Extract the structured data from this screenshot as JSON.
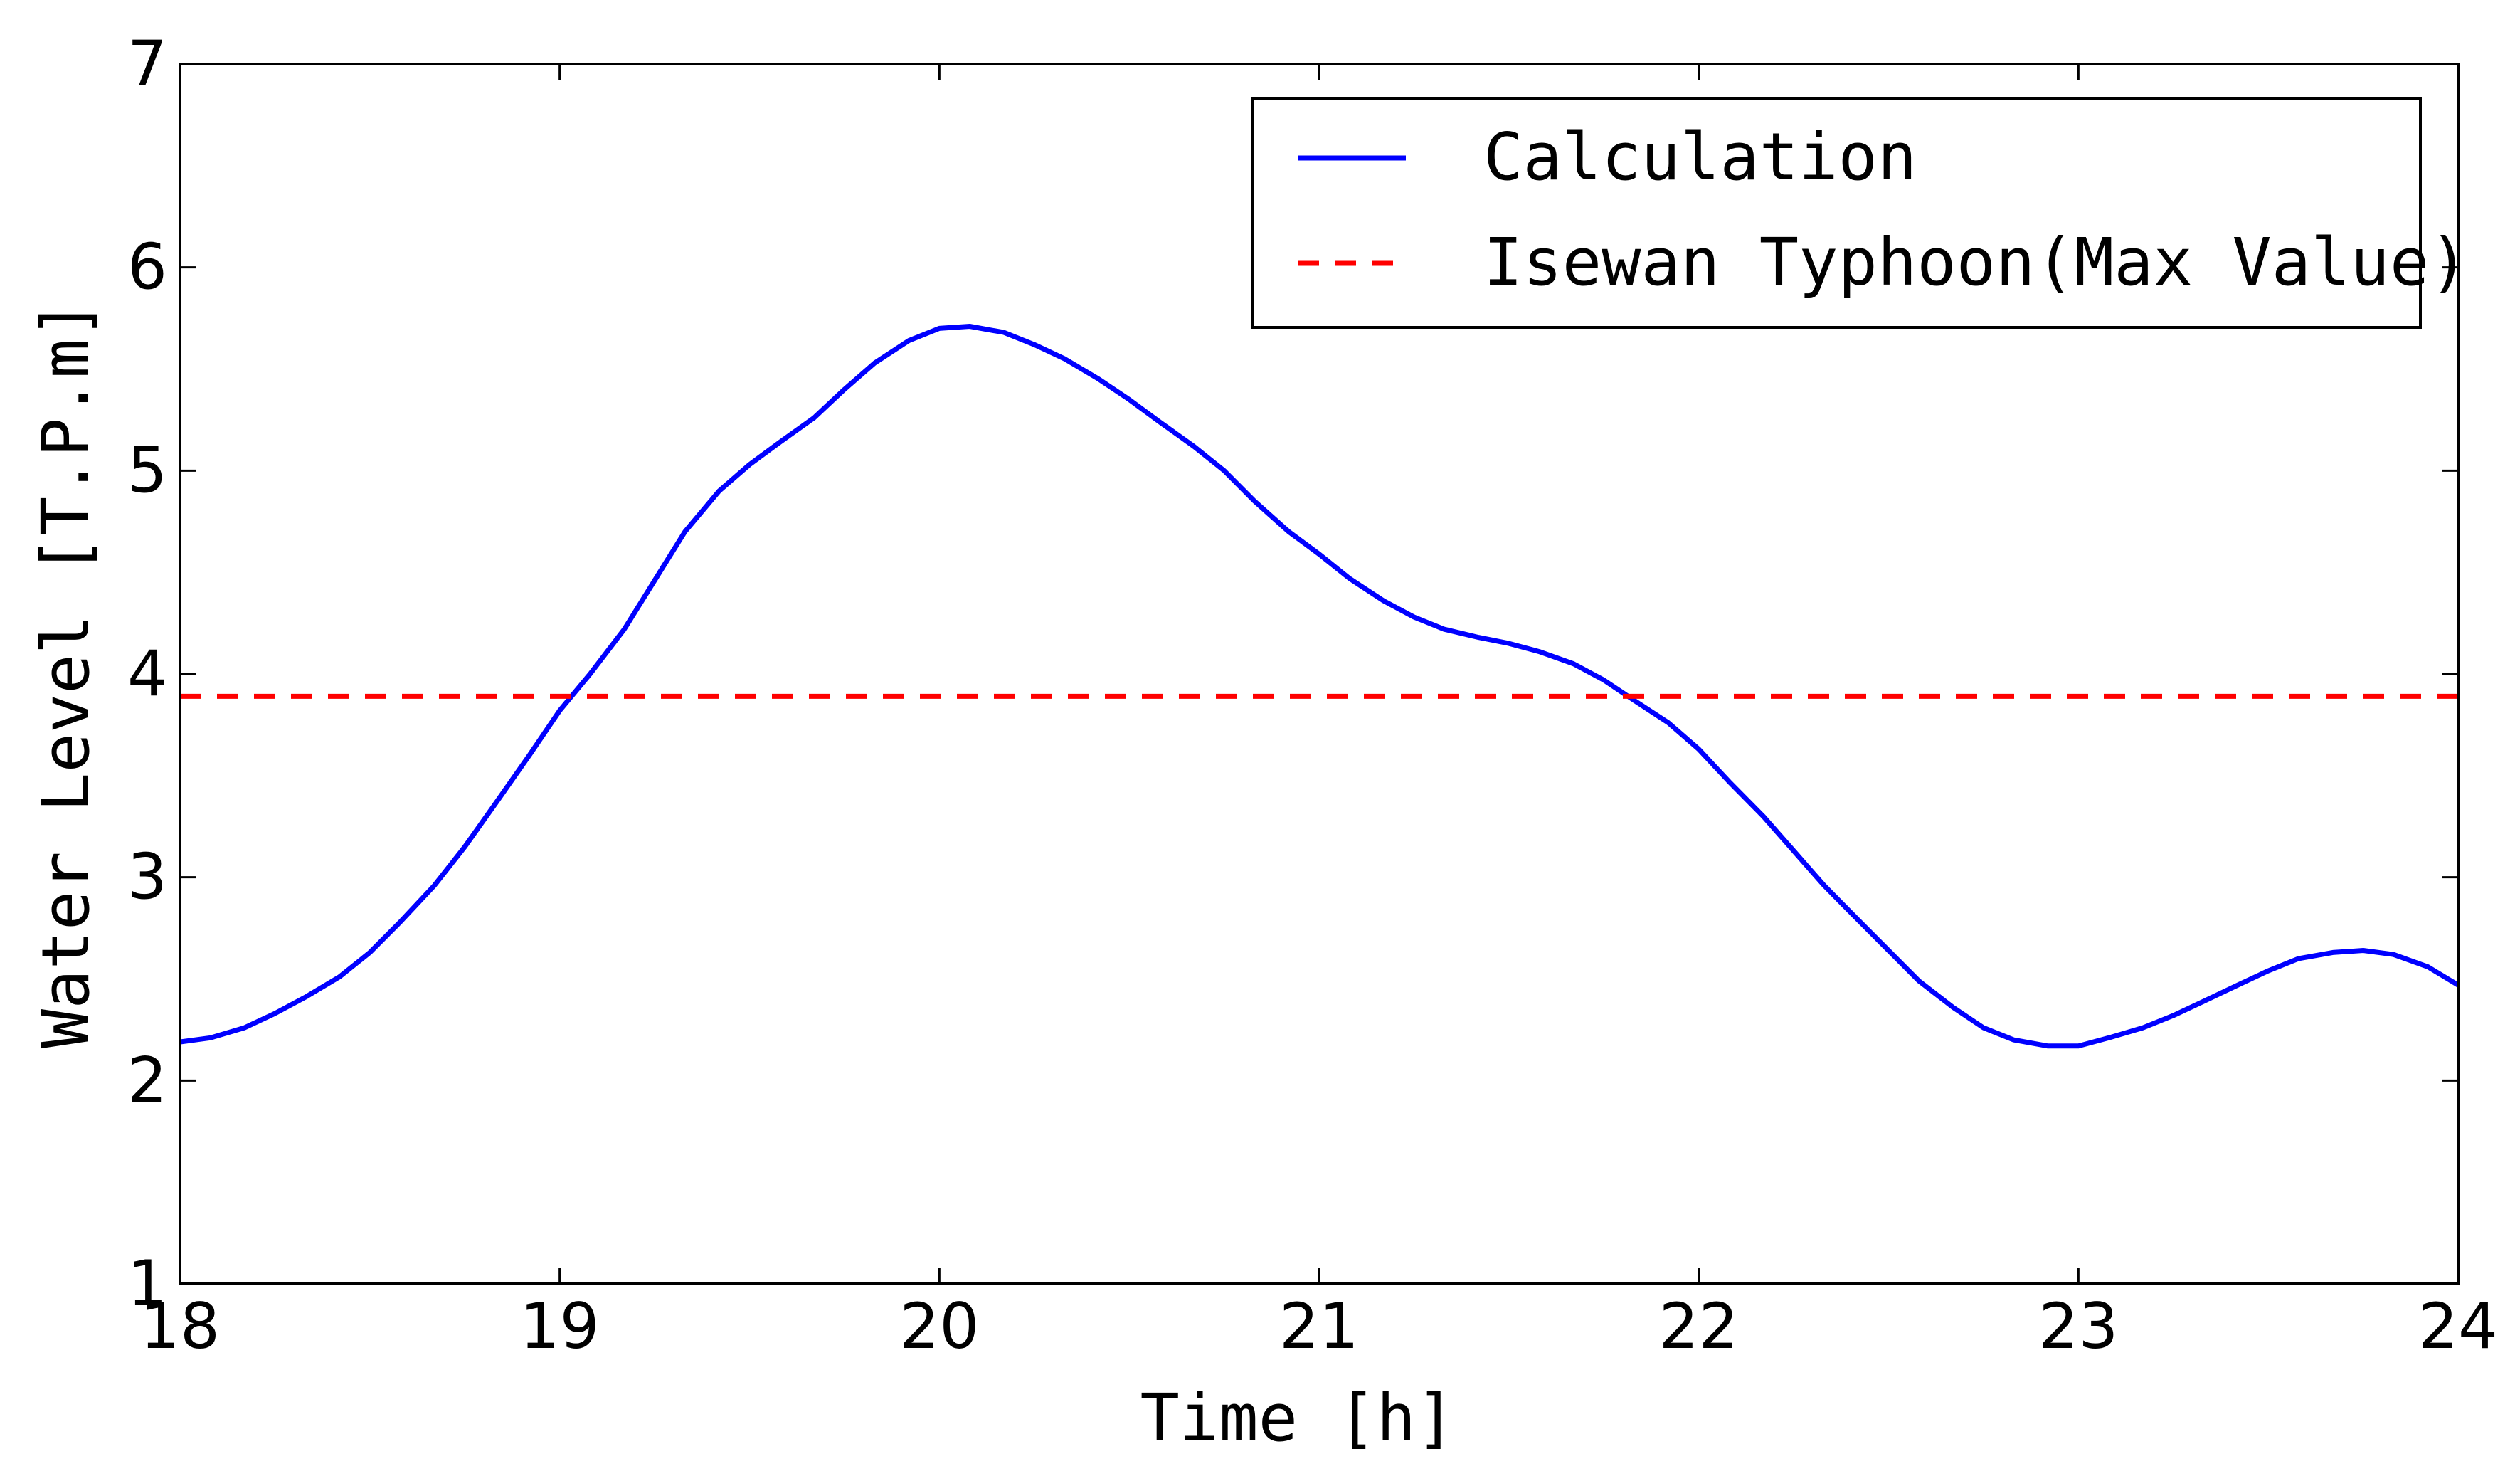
{
  "chart_data": {
    "type": "line",
    "xlabel": "Time [h]",
    "ylabel": "Water Level [T.P.m]",
    "xlim": [
      18,
      24
    ],
    "ylim": [
      1,
      7
    ],
    "xticks": [
      "18",
      "19",
      "20",
      "21",
      "22",
      "23",
      "24"
    ],
    "yticks": [
      "1",
      "2",
      "3",
      "4",
      "5",
      "6",
      "7"
    ],
    "grid": false,
    "legend_position": "top-right",
    "series": [
      {
        "name": "Calculation",
        "style": "solid",
        "color": "#0000ff",
        "x": [
          18.0,
          18.08,
          18.17,
          18.25,
          18.33,
          18.42,
          18.5,
          18.58,
          18.67,
          18.75,
          18.83,
          18.92,
          19.0,
          19.08,
          19.17,
          19.25,
          19.33,
          19.42,
          19.5,
          19.58,
          19.67,
          19.75,
          19.83,
          19.92,
          20.0,
          20.08,
          20.17,
          20.25,
          20.33,
          20.42,
          20.5,
          20.58,
          20.67,
          20.75,
          20.83,
          20.92,
          21.0,
          21.08,
          21.17,
          21.25,
          21.33,
          21.42,
          21.5,
          21.58,
          21.67,
          21.75,
          21.83,
          21.92,
          22.0,
          22.08,
          22.17,
          22.25,
          22.33,
          22.42,
          22.5,
          22.58,
          22.67,
          22.75,
          22.83,
          22.92,
          23.0,
          23.08,
          23.17,
          23.25,
          23.33,
          23.42,
          23.5,
          23.58,
          23.67,
          23.75,
          23.83,
          23.92,
          24.0
        ],
        "y": [
          2.19,
          2.21,
          2.26,
          2.33,
          2.41,
          2.51,
          2.63,
          2.78,
          2.96,
          3.15,
          3.36,
          3.6,
          3.82,
          4.0,
          4.22,
          4.46,
          4.7,
          4.9,
          5.03,
          5.14,
          5.26,
          5.4,
          5.53,
          5.64,
          5.7,
          5.71,
          5.68,
          5.62,
          5.55,
          5.45,
          5.35,
          5.24,
          5.12,
          5.0,
          4.85,
          4.7,
          4.59,
          4.47,
          4.36,
          4.28,
          4.22,
          4.18,
          4.15,
          4.11,
          4.05,
          3.97,
          3.87,
          3.76,
          3.63,
          3.47,
          3.3,
          3.13,
          2.96,
          2.79,
          2.64,
          2.49,
          2.36,
          2.26,
          2.2,
          2.17,
          2.17,
          2.21,
          2.26,
          2.32,
          2.39,
          2.47,
          2.54,
          2.6,
          2.63,
          2.64,
          2.62,
          2.56,
          2.47
        ]
      },
      {
        "name": "Isewan Typhoon(Max Value)",
        "style": "dashed",
        "color": "#ff0000",
        "x": [
          18,
          24
        ],
        "y": [
          3.89,
          3.89
        ]
      }
    ]
  }
}
